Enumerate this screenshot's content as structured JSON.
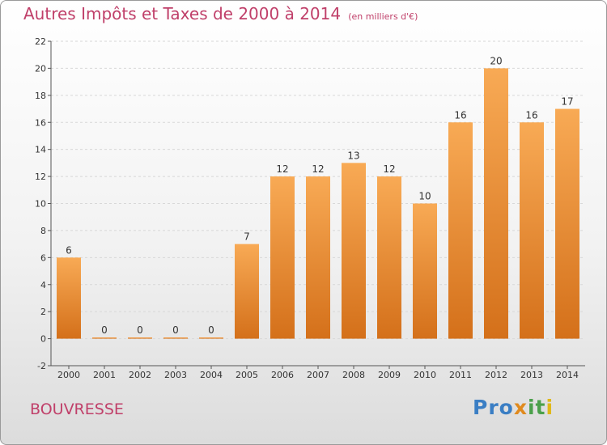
{
  "title": {
    "main": "Autres Impôts et Taxes de 2000 à 2014",
    "sub": "(en milliers d'€)"
  },
  "commune": "BOUVRESSE",
  "logo": {
    "text": "Proxiti",
    "icon": "proxiti-logo"
  },
  "colors": {
    "title": "#c0406a",
    "bar_top": "#f8aa55",
    "bar_bottom": "#d4701a",
    "grid": "#d8d8d8"
  },
  "chart_data": {
    "type": "bar",
    "title": "Autres Impôts et Taxes de 2000 à 2014",
    "subtitle": "(en milliers d'€)",
    "xlabel": "",
    "ylabel": "",
    "categories": [
      "2000",
      "2001",
      "2002",
      "2003",
      "2004",
      "2005",
      "2006",
      "2007",
      "2008",
      "2009",
      "2010",
      "2011",
      "2012",
      "2013",
      "2014"
    ],
    "values": [
      6,
      0,
      0,
      0,
      0,
      7,
      12,
      12,
      13,
      12,
      10,
      16,
      20,
      16,
      17
    ],
    "ylim": [
      -2,
      22
    ],
    "yticks": [
      -2,
      0,
      2,
      4,
      6,
      8,
      10,
      12,
      14,
      16,
      18,
      20,
      22
    ],
    "grid": true,
    "data_labels": true
  }
}
